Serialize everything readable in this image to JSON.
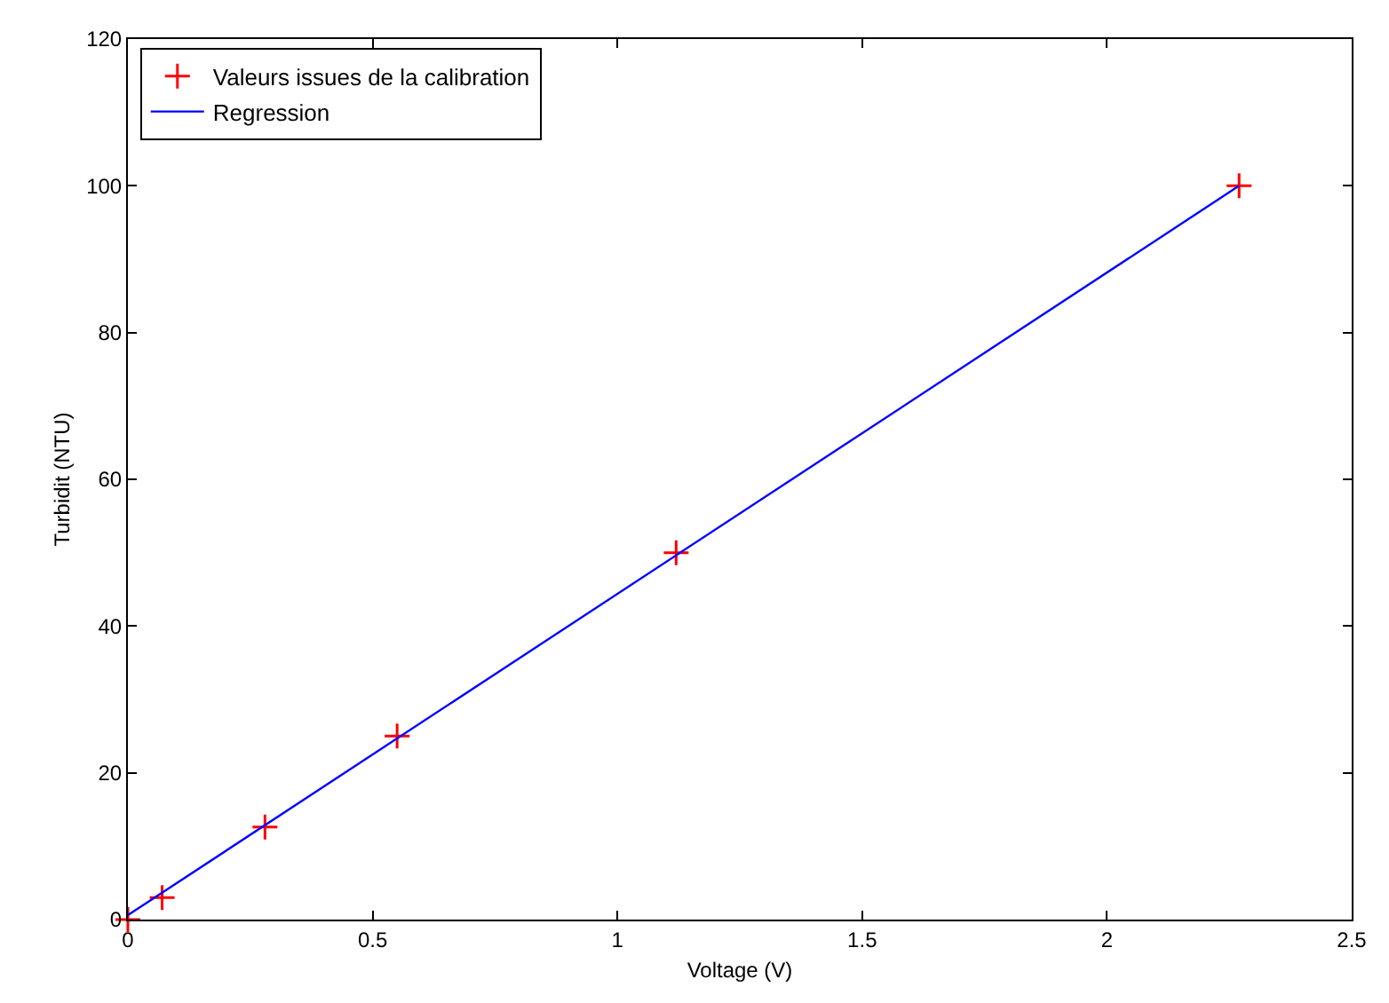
{
  "chart_data": {
    "type": "scatter",
    "xlabel": "Voltage (V)",
    "ylabel": "Turbidit (NTU)",
    "series": [
      {
        "name": "Valeurs issues de la calibration",
        "marker": "cross",
        "color": "#ff0000",
        "x": [
          0,
          0.07,
          0.28,
          0.55,
          1.12,
          2.27
        ],
        "values": [
          0,
          3,
          12.6,
          25,
          50,
          100
        ]
      },
      {
        "name": "Regression",
        "type": "line",
        "marker": "none",
        "color": "#0000ff",
        "x": [
          0,
          2.27
        ],
        "values": [
          0.6,
          100
        ]
      }
    ],
    "xlim": [
      0,
      2.5
    ],
    "xticks": [
      0,
      0.5,
      1,
      1.5,
      2,
      2.5
    ],
    "ylim": [
      0,
      120
    ],
    "yticks": [
      0,
      20,
      40,
      60,
      80,
      100,
      120
    ],
    "legend": "top left"
  }
}
